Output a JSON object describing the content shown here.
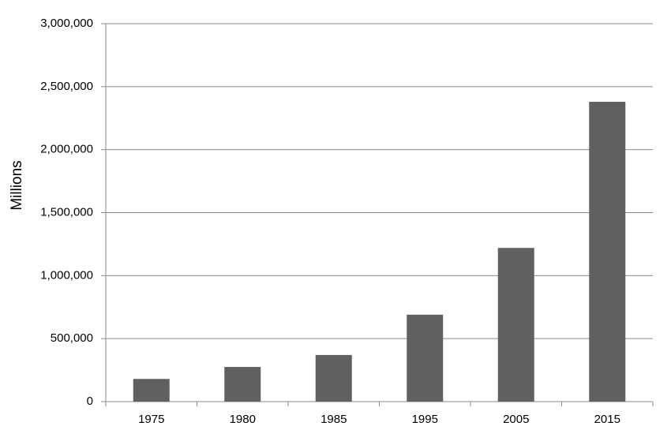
{
  "chart_data": {
    "type": "bar",
    "y_label": "Millions",
    "categories": [
      "1975",
      "1980",
      "1985",
      "1995",
      "2005",
      "2015"
    ],
    "values": [
      180000,
      275000,
      370000,
      690000,
      1220000,
      2380000
    ],
    "color": "#606060",
    "ylim": [
      0,
      3000000
    ],
    "yticks": [
      0,
      {
        "value": 500000,
        "label": "500,000"
      },
      {
        "value": 1000000,
        "label": "1,000,000"
      },
      {
        "value": 1500000,
        "label": "1,500,000"
      },
      {
        "value": 2000000,
        "label": "2,000,000"
      },
      {
        "value": 2500000,
        "label": "2,500,000"
      },
      {
        "value": 3000000,
        "label": "3,000,000"
      }
    ],
    "grid": true
  }
}
